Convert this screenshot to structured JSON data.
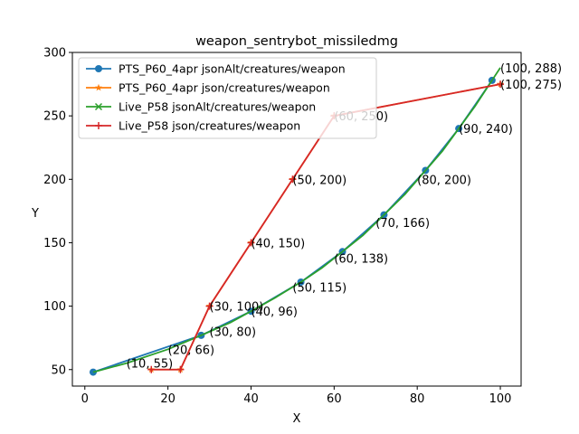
{
  "chart_data": {
    "type": "line",
    "title": "weapon_sentrybot_missiledmg",
    "xlabel": "X",
    "ylabel": "Y",
    "xlim": [
      -3,
      105
    ],
    "ylim": [
      37,
      300
    ],
    "xticks": [
      0,
      20,
      40,
      60,
      80,
      100
    ],
    "yticks": [
      50,
      100,
      150,
      200,
      250,
      300
    ],
    "legend_position": "top-left",
    "grid": false,
    "series": [
      {
        "name": "PTS_P60_4apr jsonAlt/creatures/weapon",
        "color": "#1f77b4",
        "marker": "circle",
        "x": [
          2,
          28,
          40,
          52,
          62,
          72,
          82,
          90,
          98
        ],
        "y": [
          48,
          77,
          96,
          119,
          143,
          172,
          207,
          240,
          278
        ]
      },
      {
        "name": "PTS_P60_4apr json/creatures/weapon",
        "color": "#ff7f0e",
        "marker": "star",
        "x": [
          16,
          23,
          30,
          40,
          50,
          60,
          100
        ],
        "y": [
          50,
          50,
          100,
          150,
          200,
          250,
          275
        ]
      },
      {
        "name": "Live_P58 jsonAlt/creatures/weapon",
        "color": "#2ca02c",
        "marker": "none",
        "x": [
          2,
          10,
          20,
          28,
          35,
          40,
          46,
          52,
          57,
          62,
          67,
          72,
          77,
          82,
          86,
          90,
          94,
          98,
          100
        ],
        "y": [
          48,
          55,
          66,
          77,
          87,
          96,
          107,
          119,
          130,
          143,
          156,
          172,
          188,
          207,
          222,
          240,
          258,
          278,
          288
        ]
      },
      {
        "name": "Live_P58 json/creatures/weapon",
        "color": "#d62728",
        "marker": "plus",
        "x": [
          16,
          23,
          30,
          40,
          50,
          60,
          100
        ],
        "y": [
          50,
          50,
          100,
          150,
          200,
          250,
          275
        ]
      }
    ],
    "annotations": [
      {
        "text": "(10, 55)",
        "x": 10,
        "y": 55
      },
      {
        "text": "(20, 66)",
        "x": 20,
        "y": 66
      },
      {
        "text": "(30, 80)",
        "x": 30,
        "y": 80
      },
      {
        "text": "(30, 100)",
        "x": 30,
        "y": 100
      },
      {
        "text": "(40, 96)",
        "x": 40,
        "y": 96
      },
      {
        "text": "(40, 150)",
        "x": 40,
        "y": 150
      },
      {
        "text": "(50, 115)",
        "x": 50,
        "y": 115
      },
      {
        "text": "(50, 200)",
        "x": 50,
        "y": 200
      },
      {
        "text": "(60, 138)",
        "x": 60,
        "y": 138
      },
      {
        "text": "(60, 250)",
        "x": 60,
        "y": 250
      },
      {
        "text": "(70, 166)",
        "x": 70,
        "y": 166
      },
      {
        "text": "(80, 200)",
        "x": 80,
        "y": 200
      },
      {
        "text": "(90, 240)",
        "x": 90,
        "y": 240
      },
      {
        "text": "(100, 288)",
        "x": 100,
        "y": 288
      },
      {
        "text": "(100, 275)",
        "x": 100,
        "y": 275
      }
    ]
  }
}
